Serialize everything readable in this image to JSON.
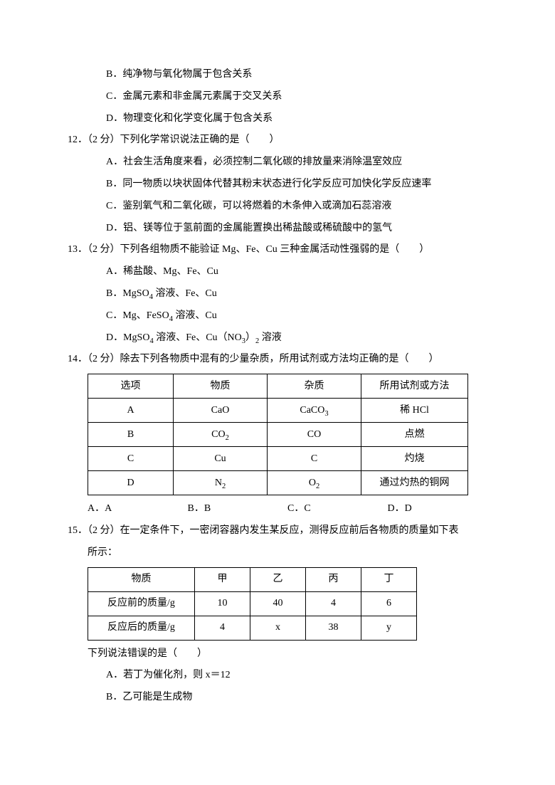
{
  "q11_opts": {
    "B": "B．纯净物与氧化物属于包含关系",
    "C": "C．金属元素和非金属元素属于交叉关系",
    "D": "D．物理变化和化学变化属于包含关系"
  },
  "q12": {
    "stem": "12．（2 分）下列化学常识说法正确的是（　　）",
    "A": "A．社会生活角度来看，必须控制二氧化碳的排放量来消除温室效应",
    "B": "B．同一物质以块状固体代替其粉末状态进行化学反应可加快化学反应速率",
    "C": "C．鉴别氧气和二氧化碳，可以将燃着的木条伸入或滴加石蕊溶液",
    "D": "D．铝、镁等位于氢前面的金属能置换出稀盐酸或稀硫酸中的氢气"
  },
  "q13": {
    "stem": "13．（2 分）下列各组物质不能验证 Mg、Fe、Cu 三种金属活动性强弱的是（　　）",
    "A": "A．稀盐酸、Mg、Fe、Cu",
    "B_pre": "B．MgSO",
    "B_post": " 溶液、Fe、Cu",
    "C_pre": "C．Mg、FeSO",
    "C_post": " 溶液、Cu",
    "D_pre": "D．MgSO",
    "D_mid": " 溶液、Fe、Cu（NO",
    "D_mid2": "）",
    "D_post": " 溶液"
  },
  "q14": {
    "stem": "14．（2 分）除去下列各物质中混有的少量杂质，所用试剂或方法均正确的是（　　）",
    "headers": {
      "h1": "选项",
      "h2": "物质",
      "h3": "杂质",
      "h4": "所用试剂或方法"
    },
    "rows": [
      {
        "c1": "A",
        "c2": "CaO",
        "c3_pre": "CaCO",
        "c3_sub": "3",
        "c4": "稀 HCl"
      },
      {
        "c1": "B",
        "c2_pre": "CO",
        "c2_sub": "2",
        "c3": "CO",
        "c4": "点燃"
      },
      {
        "c1": "C",
        "c2": "Cu",
        "c3": "C",
        "c4": "灼烧"
      },
      {
        "c1": "D",
        "c2_pre": "N",
        "c2_sub": "2",
        "c3_pre": "O",
        "c3_sub": "2",
        "c4": "通过灼热的铜网"
      }
    ],
    "opts": {
      "A": "A．A",
      "B": "B．B",
      "C": "C．C",
      "D": "D．D"
    }
  },
  "q15": {
    "stem": "15．（2 分）在一定条件下，一密闭容器内发生某反应，测得反应前后各物质的质量如下表",
    "stem2": "所示：",
    "headers": {
      "h1": "物质",
      "h2": "甲",
      "h3": "乙",
      "h4": "丙",
      "h5": "丁"
    },
    "r1": {
      "c1": "反应前的质量/g",
      "c2": "10",
      "c3": "40",
      "c4": "4",
      "c5": "6"
    },
    "r2": {
      "c1": "反应后的质量/g",
      "c2": "4",
      "c3": "x",
      "c4": "38",
      "c5": "y"
    },
    "tail": "下列说法错误的是（　　）",
    "A": "A．若丁为催化剂，则 x＝12",
    "B": "B．乙可能是生成物"
  }
}
